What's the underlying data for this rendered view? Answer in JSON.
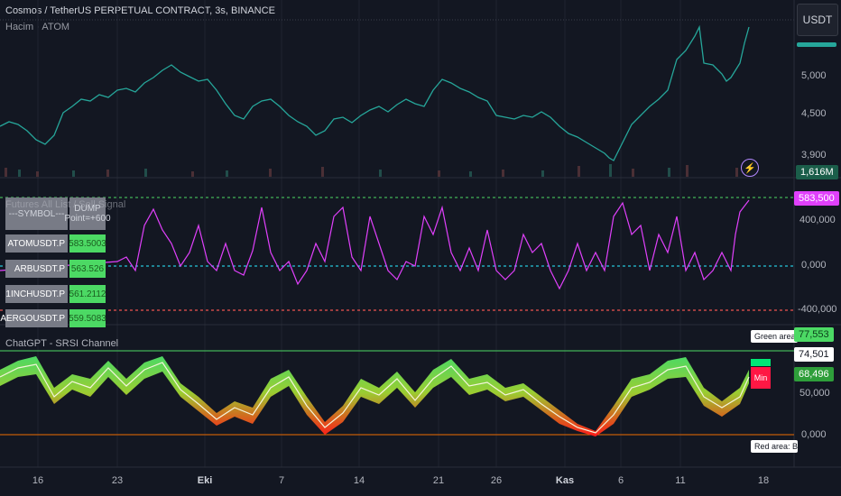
{
  "header": {
    "symbol_title": "Cosmos / TetherUS PERPETUAL CONTRACT, 3s, BINANCE",
    "indicator": "Hacim · ATOM",
    "currency": "USDT"
  },
  "price_scale": {
    "labels": [
      "5,000",
      "4,500",
      "3,900"
    ],
    "volume_badge": "1,616M"
  },
  "futures_panel": {
    "title": "Futures All List / Sell Signal",
    "header_symbol": "---SYMBOL---",
    "header_value": "DUMP Point=+600",
    "rows": [
      {
        "symbol": "ATOMUSDT.P",
        "value": "583.5003"
      },
      {
        "symbol": "ARBUSDT.P",
        "value": "563.526"
      },
      {
        "symbol": "1INCHUSDT.P",
        "value": "561.2112"
      },
      {
        "symbol": "AERGOUSDT.P",
        "value": "559.5083"
      }
    ],
    "scale": [
      "400,000",
      "0,000",
      "-400,000"
    ],
    "current_value": "583,500"
  },
  "srsi_panel": {
    "title": "ChatGPT - SRSI Channel",
    "scale": [
      "50,000",
      "0,000"
    ],
    "badges": [
      "77,553",
      "74,501",
      "68,496"
    ],
    "min_label": "Min",
    "green_note": "Green area: Sell",
    "red_note": "Red area: Buy"
  },
  "x_axis": [
    "16",
    "23",
    "Eki",
    "7",
    "14",
    "21",
    "26",
    "Kas",
    "6",
    "11",
    "18"
  ],
  "colors": {
    "background": "#131722",
    "bull": "#26a69a",
    "bear": "#ef5350",
    "oscillator": "#e040fb",
    "accent_green": "#4cd964"
  },
  "icons": {
    "alert": "lightning-icon"
  }
}
